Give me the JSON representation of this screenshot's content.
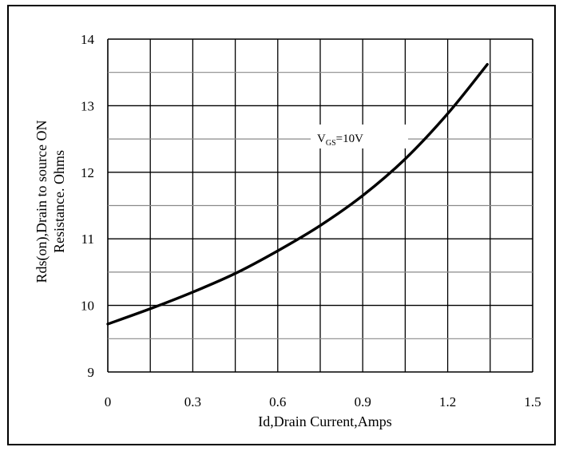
{
  "chart_data": {
    "type": "line",
    "xlabel": "Id,Drain Current,Amps",
    "ylabel_lines": [
      "Rds(on),Drain to source ON",
      "Resistance. Ohms"
    ],
    "xlim": [
      0,
      1.5
    ],
    "ylim": [
      9,
      14
    ],
    "x_ticks": [
      "0",
      "0.3",
      "0.6",
      "0.9",
      "1.2",
      "1.5"
    ],
    "y_ticks": [
      "9",
      "10",
      "11",
      "12",
      "13",
      "14"
    ],
    "grid": true,
    "legend": "none",
    "annotation": {
      "main": "V",
      "subscript": "GS",
      "suffix": "=10V"
    },
    "series": [
      {
        "x": [
          0,
          0.15,
          0.3,
          0.45,
          0.6,
          0.75,
          0.9,
          1.05,
          1.2,
          1.34
        ],
        "y": [
          9.72,
          9.95,
          10.2,
          10.48,
          10.82,
          11.2,
          11.65,
          12.2,
          12.88,
          13.62
        ],
        "color": "#000000"
      }
    ]
  }
}
